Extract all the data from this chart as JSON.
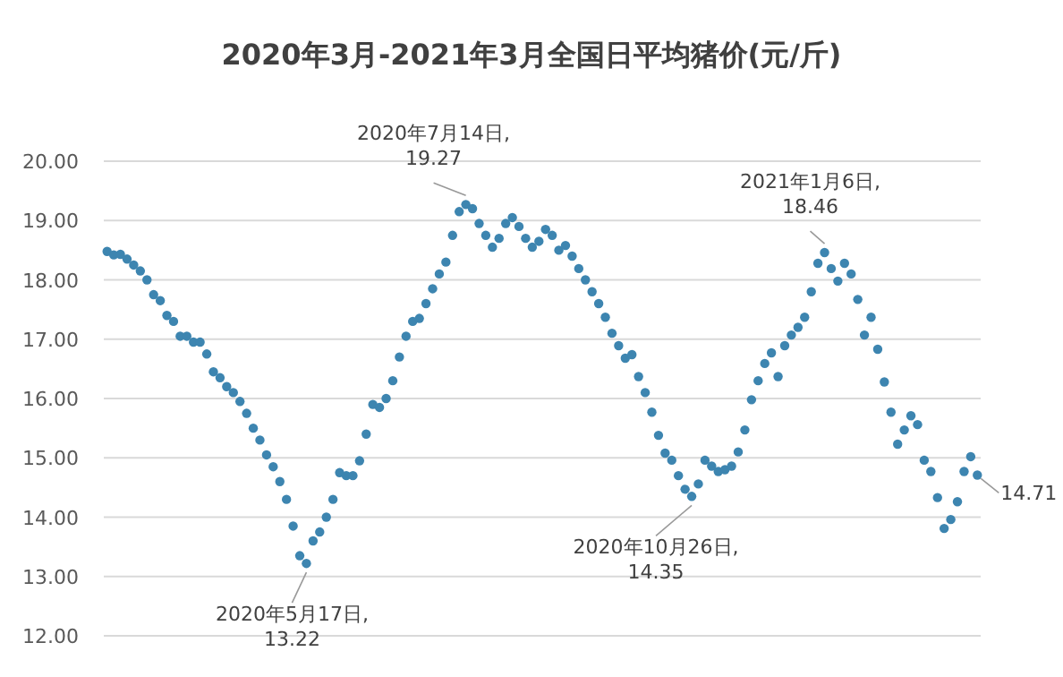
{
  "chart_data": {
    "type": "scatter",
    "title": "2020年3月-2021年3月全国日平均猪价(元/斤)",
    "categories": [
      null,
      null,
      null,
      null,
      null,
      null,
      null,
      null,
      null,
      null,
      null,
      null,
      null,
      null,
      null,
      null,
      null,
      null,
      null,
      null,
      null,
      null,
      null,
      null,
      null,
      null,
      null,
      null,
      null,
      null,
      null,
      null,
      null,
      null,
      null,
      null,
      null,
      null,
      null,
      null,
      null,
      null,
      null,
      null,
      null,
      null,
      null,
      null,
      null,
      null,
      null,
      null,
      null,
      null,
      null,
      null,
      null,
      null,
      null,
      null,
      null,
      null,
      null,
      null,
      null,
      null,
      null,
      null,
      null,
      null,
      null,
      null,
      null,
      null,
      null,
      null,
      null,
      null,
      null,
      null,
      null,
      null,
      null,
      null,
      null,
      null,
      null,
      null,
      null,
      null,
      null,
      null,
      null,
      null,
      null,
      null,
      null,
      null,
      null,
      null,
      null,
      null,
      null,
      null,
      null,
      null,
      null,
      null,
      null,
      null,
      null,
      null,
      null,
      null,
      null,
      null,
      null,
      null,
      null,
      null,
      null,
      null,
      null,
      null,
      null,
      null,
      null,
      null,
      null,
      null,
      null,
      null
    ],
    "series": [
      {
        "color": "#3d85b0",
        "values": [
          18.48,
          18.42,
          18.43,
          18.35,
          18.25,
          18.15,
          18.0,
          17.75,
          17.65,
          17.4,
          17.3,
          17.05,
          17.05,
          16.95,
          16.95,
          16.75,
          16.45,
          16.35,
          16.2,
          16.1,
          15.95,
          15.75,
          15.5,
          15.3,
          15.05,
          14.85,
          14.6,
          14.3,
          13.85,
          13.35,
          13.22,
          13.6,
          13.75,
          14.0,
          14.3,
          14.75,
          14.7,
          14.7,
          14.95,
          15.4,
          15.9,
          15.85,
          16.0,
          16.3,
          16.7,
          17.05,
          17.3,
          17.35,
          17.6,
          17.85,
          18.1,
          18.3,
          18.75,
          19.15,
          19.27,
          19.2,
          18.95,
          18.75,
          18.55,
          18.7,
          18.95,
          19.05,
          18.9,
          18.7,
          18.55,
          18.65,
          18.85,
          18.75,
          18.5,
          18.58,
          18.4,
          18.19,
          18.0,
          17.8,
          17.6,
          17.37,
          17.1,
          16.89,
          16.68,
          16.74,
          16.37,
          16.1,
          15.77,
          15.38,
          15.08,
          14.96,
          14.7,
          14.47,
          14.35,
          14.56,
          14.96,
          14.86,
          14.77,
          14.8,
          14.86,
          15.1,
          15.47,
          15.98,
          16.3,
          16.59,
          16.77,
          16.37,
          16.89,
          17.07,
          17.2,
          17.37,
          17.8,
          18.28,
          18.46,
          18.19,
          17.98,
          18.28,
          18.1,
          17.67,
          17.07,
          17.37,
          16.83,
          16.28,
          15.77,
          15.23,
          15.47,
          15.71,
          15.56,
          14.96,
          14.77,
          14.33,
          13.81,
          13.96,
          14.26,
          14.77,
          15.02,
          14.71
        ]
      }
    ],
    "ylim": [
      12,
      20
    ],
    "yticks": [
      {
        "value": 12,
        "label": "12.00"
      },
      {
        "value": 13,
        "label": "13.00"
      },
      {
        "value": 14,
        "label": "14.00"
      },
      {
        "value": 15,
        "label": "15.00"
      },
      {
        "value": 16,
        "label": "16.00"
      },
      {
        "value": 17,
        "label": "17.00"
      },
      {
        "value": 18,
        "label": "18.00"
      },
      {
        "value": 19,
        "label": "19.00"
      },
      {
        "value": 20,
        "label": "20.00"
      }
    ],
    "grid": "y",
    "marker": "circle",
    "tick_labels": "y",
    "annotations": [
      "2020年5月17日,\n13.22",
      "2020年7月14日,\n19.27",
      "2020年10月26日,\n14.35",
      "2021年1月6日,\n18.46",
      "14.71"
    ]
  }
}
